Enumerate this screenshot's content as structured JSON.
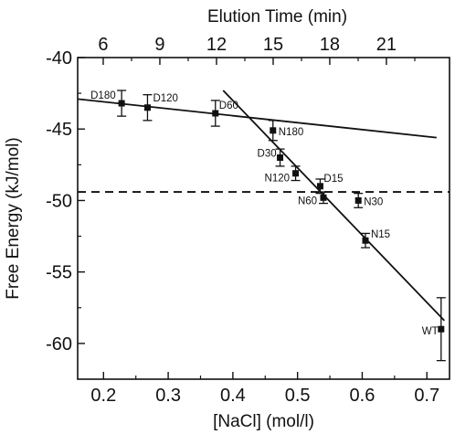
{
  "chart_data": {
    "type": "scatter",
    "xlabel": "[NaCl] (mol/l)",
    "ylabel": "Free Energy (kJ/mol)",
    "x2label": "Elution Time (min)",
    "xlim": [
      0.16,
      0.735
    ],
    "ylim": [
      -62.5,
      -40
    ],
    "x_ticks": [
      0.2,
      0.3,
      0.4,
      0.5,
      0.6,
      0.7
    ],
    "x_tick_labels": [
      "0.2",
      "0.3",
      "0.4",
      "0.5",
      "0.6",
      "0.7"
    ],
    "y_ticks": [
      -40,
      -45,
      -50,
      -55,
      -60
    ],
    "y_tick_labels": [
      "-40",
      "-45",
      "-50",
      "-55",
      "-60"
    ],
    "x2_ticks": [
      0.1995,
      0.2871,
      0.3747,
      0.4623,
      0.5498,
      0.6374
    ],
    "x2_tick_labels": [
      "6",
      "9",
      "12",
      "15",
      "18",
      "21"
    ],
    "points": [
      {
        "label": "D180",
        "x": 0.228,
        "y": -43.2,
        "err": 0.9
      },
      {
        "label": "D120",
        "x": 0.268,
        "y": -43.5,
        "err": 0.9
      },
      {
        "label": "D60",
        "x": 0.373,
        "y": -43.9,
        "err": 0.9
      },
      {
        "label": "N180",
        "x": 0.462,
        "y": -45.1,
        "err": 0.7
      },
      {
        "label": "D30",
        "x": 0.473,
        "y": -47.0,
        "err": 0.6
      },
      {
        "label": "N120",
        "x": 0.497,
        "y": -48.1,
        "err": 0.5
      },
      {
        "label": "D15",
        "x": 0.535,
        "y": -49.0,
        "err": 0.5
      },
      {
        "label": "N60",
        "x": 0.54,
        "y": -49.8,
        "err": 0.4
      },
      {
        "label": "N30",
        "x": 0.594,
        "y": -50.0,
        "err": 0.5
      },
      {
        "label": "N15",
        "x": 0.605,
        "y": -52.8,
        "err": 0.5
      },
      {
        "label": "WT",
        "x": 0.722,
        "y": -59.0,
        "err": 2.2
      }
    ],
    "fit_lines": [
      {
        "x": [
          0.16,
          0.715
        ],
        "y": [
          -42.9,
          -45.6
        ],
        "style": "solid"
      },
      {
        "x": [
          0.385,
          0.727
        ],
        "y": [
          -42.3,
          -58.4
        ],
        "style": "solid"
      },
      {
        "x": [
          0.16,
          0.735
        ],
        "y": [
          -49.4,
          -49.4
        ],
        "style": "dashed"
      }
    ],
    "color": "#111111"
  }
}
